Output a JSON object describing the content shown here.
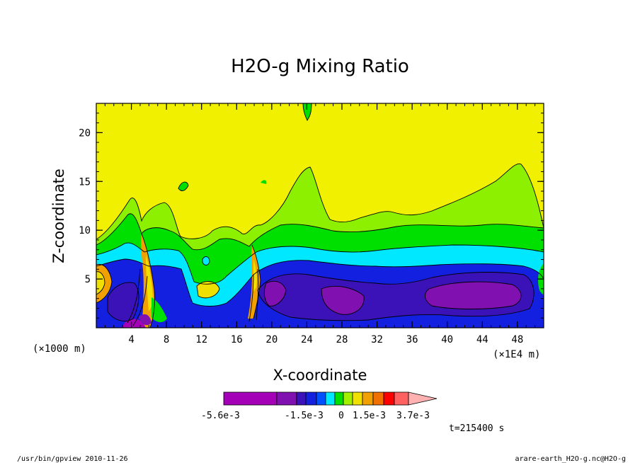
{
  "chart_data": {
    "type": "heatmap",
    "title": "H2O-g Mixing Ratio",
    "xlabel": "X-coordinate",
    "ylabel": "Z-coordinate",
    "x_unit_label": "(×1E4 m)",
    "y_unit_label": "(×1000 m)",
    "xlim": [
      0,
      51
    ],
    "ylim": [
      0,
      23
    ],
    "x_ticks": [
      4,
      8,
      12,
      16,
      20,
      24,
      28,
      32,
      36,
      40,
      44,
      48
    ],
    "y_ticks": [
      5,
      10,
      15,
      20
    ],
    "colorbar": {
      "colors": [
        "#a400b8",
        "#8010b0",
        "#3a12b8",
        "#1420e0",
        "#0050ff",
        "#00e8ff",
        "#00e000",
        "#a0f000",
        "#f0e000",
        "#f0a000",
        "#f07000",
        "#ff0000",
        "#ff6060",
        "#ffb0b0"
      ],
      "tick_labels": [
        "-5.6e-3",
        "-1.5e-3",
        "0",
        "1.5e-3",
        "3.7e-3"
      ]
    },
    "annotation": "t=215400 s",
    "footer_left": "/usr/bin/gpview  2010-11-26",
    "footer_right": "arare-earth_H2O-g.nc@H2O-g"
  }
}
